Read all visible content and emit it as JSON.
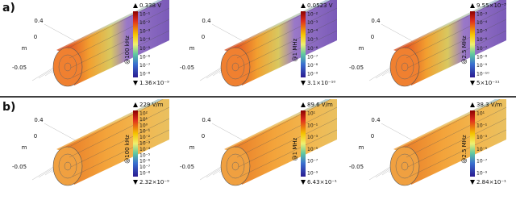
{
  "panels": [
    {
      "label": "a)",
      "plots": [
        {
          "max": "0.338 V",
          "min": "1.36×10⁻⁹",
          "frequency": "@100 kHz",
          "axis_labels": [
            "0.4",
            "0",
            "m",
            "-0.05"
          ],
          "colorbar_ticks": [
            "10⁻¹",
            "10⁻²",
            "10⁻³",
            "10⁻⁴",
            "10⁻⁵",
            "10⁻⁶",
            "10⁻⁷",
            "10⁻⁸"
          ]
        },
        {
          "max": "0.0523 V",
          "min": "3.1×10⁻¹⁰",
          "frequency": "@1 MHz",
          "axis_labels": [
            "0.4",
            "0",
            "m",
            "-0.05"
          ],
          "colorbar_ticks": [
            "10⁻²",
            "10⁻³",
            "10⁻⁴",
            "10⁻⁵",
            "10⁻⁶",
            "10⁻⁷",
            "10⁻⁸",
            "10⁻⁹"
          ]
        },
        {
          "max": "9.55×10⁻³ V",
          "min": "5×10⁻¹¹",
          "frequency": "@2.5 MHz",
          "axis_labels": [
            "0.4",
            "0",
            "m",
            "-0.05"
          ],
          "colorbar_ticks": [
            "10⁻³",
            "10⁻⁴",
            "10⁻⁵",
            "10⁻⁶",
            "10⁻⁷",
            "10⁻⁸",
            "10⁻⁹",
            "10⁻¹⁰"
          ]
        }
      ]
    },
    {
      "label": "b)",
      "plots": [
        {
          "max": "229 V/m",
          "min": "2.32×10⁻⁹",
          "frequency": "@100 kHz",
          "axis_labels": [
            "0.4",
            "0",
            "m",
            "-0.05"
          ],
          "colorbar_ticks": [
            "10²",
            "10¹",
            "10⁰",
            "10⁻¹",
            "10⁻²",
            "10⁻³",
            "10⁻⁴",
            "10⁻⁵",
            "10⁻⁶",
            "10⁻⁷",
            "10⁻⁸"
          ]
        },
        {
          "max": "89.6 V/m",
          "min": "6.43×10⁻¹⁰",
          "frequency": "@1 MHz",
          "axis_labels": [
            "0.4",
            "0",
            "m",
            "-0.05"
          ],
          "colorbar_ticks": [
            "10¹",
            "10⁻¹",
            "10⁻³",
            "10⁻⁵",
            "10⁻⁷",
            "10⁻⁹"
          ]
        },
        {
          "max": "38.3 V/m",
          "min": "2.84×10⁻¹⁰",
          "frequency": "@2.5 MHz",
          "axis_labels": [
            "0.4",
            "0",
            "m",
            "-0.05"
          ],
          "colorbar_ticks": [
            "10¹",
            "10⁻¹",
            "10⁻³",
            "10⁻⁵",
            "10⁻⁷",
            "10⁻⁹"
          ]
        }
      ]
    }
  ]
}
